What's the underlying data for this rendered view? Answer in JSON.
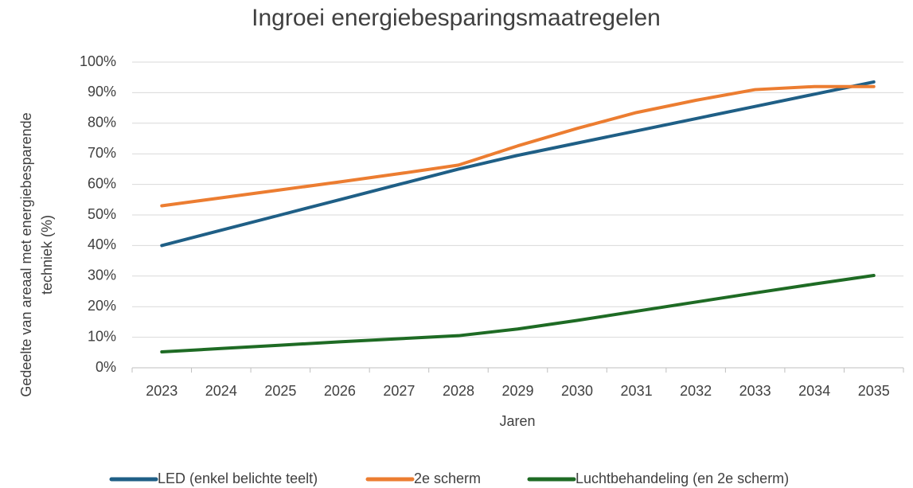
{
  "chart_data": {
    "type": "line",
    "title": "Ingroei energiebesparingsmaatregelen",
    "x_label": "Jaren",
    "y_label": [
      "Gedeelte van areaal met energiebesparende",
      "techniek (%)"
    ],
    "categories": [
      "2023",
      "2024",
      "2025",
      "2026",
      "2027",
      "2028",
      "2029",
      "2030",
      "2031",
      "2032",
      "2033",
      "2034",
      "2035"
    ],
    "series": [
      {
        "name": "LED (enkel belichte teelt)",
        "color": "#1f5f86",
        "values": [
          40,
          45,
          50,
          55,
          60,
          65,
          69.5,
          73.5,
          77.5,
          81.5,
          85.5,
          89.5,
          93.5
        ]
      },
      {
        "name": "2e scherm",
        "color": "#ec7d31",
        "values": [
          53,
          55.6,
          58.2,
          60.8,
          63.5,
          66.3,
          72.6,
          78.3,
          83.5,
          87.5,
          91,
          92,
          92
        ]
      },
      {
        "name": "Luchtbehandeling (en 2e scherm)",
        "color": "#1e6b24",
        "values": [
          5.2,
          6.3,
          7.4,
          8.5,
          9.5,
          10.5,
          12.7,
          15.5,
          18.5,
          21.5,
          24.5,
          27.4,
          30.2
        ]
      }
    ],
    "ylim": [
      0,
      100
    ],
    "yticks": [
      {
        "value": 0,
        "label": "0%"
      },
      {
        "value": 10,
        "label": "10%"
      },
      {
        "value": 20,
        "label": "20%"
      },
      {
        "value": 30,
        "label": "30%"
      },
      {
        "value": 40,
        "label": "40%"
      },
      {
        "value": 50,
        "label": "50%"
      },
      {
        "value": 60,
        "label": "60%"
      },
      {
        "value": 70,
        "label": "70%"
      },
      {
        "value": 80,
        "label": "80%"
      },
      {
        "value": 90,
        "label": "90%"
      },
      {
        "value": 100,
        "label": "100%"
      }
    ],
    "grid": true,
    "legend": "bottom"
  }
}
